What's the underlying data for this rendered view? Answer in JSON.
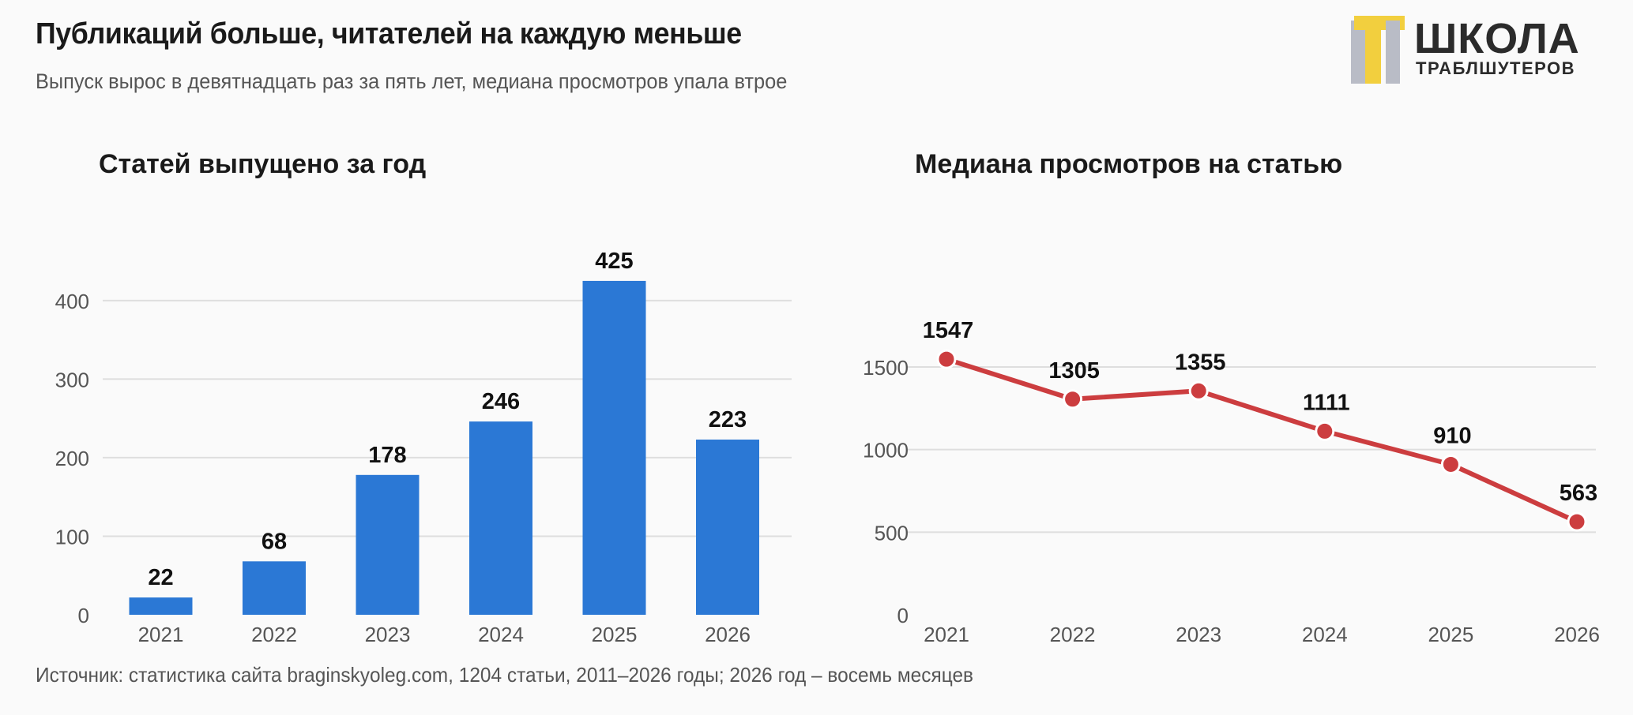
{
  "header": {
    "title": "Публикаций больше, читателей на каждую меньше",
    "subtitle": "Выпуск вырос в девятнадцать раз за пять лет, медиана просмотров упала втрое"
  },
  "logo": {
    "main": "ШКОЛА",
    "sub": "ТРАБЛШУТЕРОВ",
    "colors": {
      "gray": "#b9bcc6",
      "yellow": "#f2cf3e",
      "text": "#2b2b2b"
    }
  },
  "footer": {
    "source": "Источник: статистика сайта braginskyoleg.com, 1204 статьи, 2011–2026 годы; 2026 год – восемь месяцев"
  },
  "chart_data": [
    {
      "type": "bar",
      "title": "Статей выпущено за год",
      "categories": [
        "2021",
        "2022",
        "2023",
        "2024",
        "2025",
        "2026"
      ],
      "values": [
        22,
        68,
        178,
        246,
        425,
        223
      ],
      "ylim": [
        0,
        440
      ],
      "yticks": [
        0,
        100,
        200,
        300,
        400
      ],
      "grid": true,
      "data_labels": true,
      "color": "#2b78d5"
    },
    {
      "type": "line",
      "title": "Медиана просмотров на статью",
      "categories": [
        "2021",
        "2022",
        "2023",
        "2024",
        "2025",
        "2026"
      ],
      "values": [
        1547,
        1305,
        1355,
        1111,
        910,
        563
      ],
      "ylim": [
        0,
        1600
      ],
      "yticks": [
        0,
        500,
        1000,
        1500
      ],
      "grid": true,
      "data_labels": true,
      "color": "#cc3d3f"
    }
  ]
}
